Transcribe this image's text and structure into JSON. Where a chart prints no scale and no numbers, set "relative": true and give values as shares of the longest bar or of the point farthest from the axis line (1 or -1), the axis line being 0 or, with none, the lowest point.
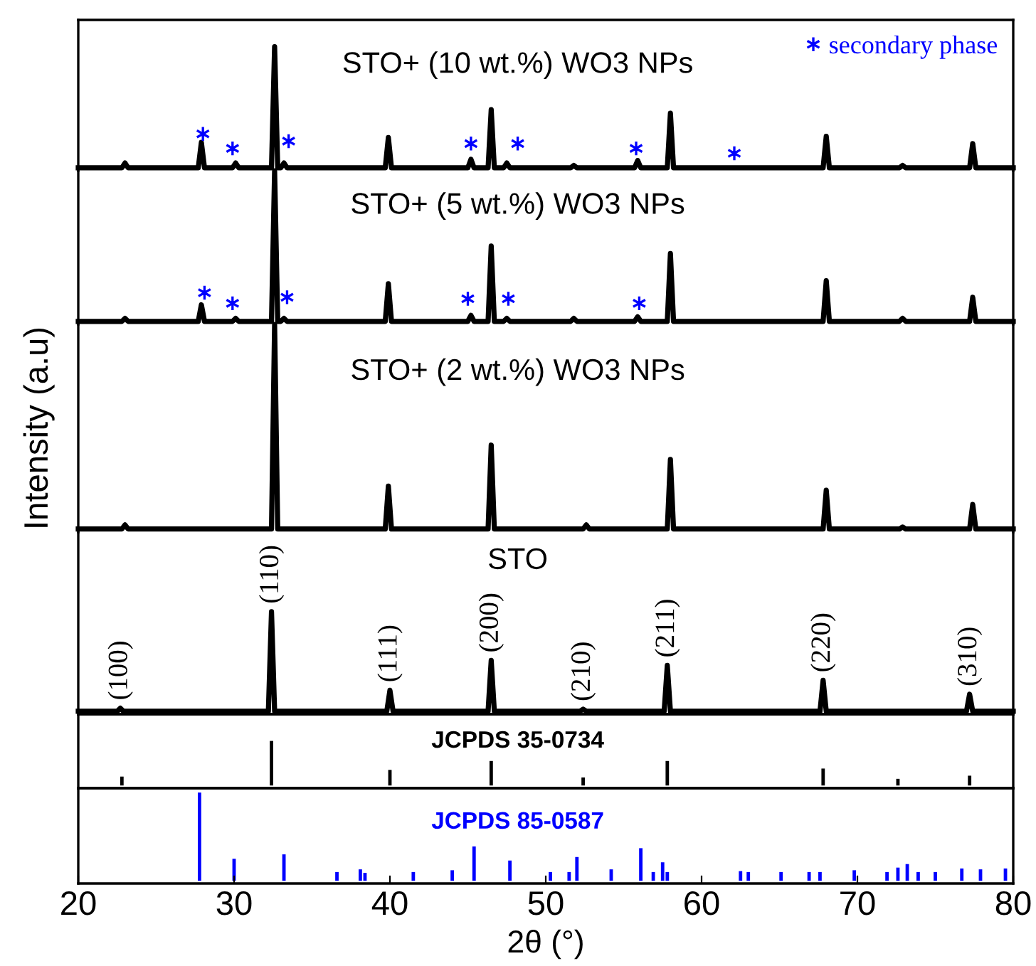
{
  "chart_data": [
    {
      "type": "line",
      "title": "STO+ (10 wt.%) WO3 NPs",
      "relative": true,
      "xlim": [
        20,
        80
      ],
      "tick_labels": false,
      "legend": "top right",
      "series": [
        {
          "color": "#000000",
          "x": [
            20,
            22.8,
            23.0,
            23.2,
            27.7,
            27.9,
            28.1,
            29.9,
            30.1,
            30.3,
            32.4,
            32.6,
            32.8,
            33.0,
            33.2,
            33.4,
            39.7,
            39.9,
            40.1,
            45.0,
            45.2,
            45.4,
            46.3,
            46.5,
            46.7,
            47.3,
            47.5,
            47.7,
            51.6,
            51.8,
            52.0,
            55.7,
            55.9,
            56.1,
            57.8,
            58.0,
            58.2,
            67.8,
            68.0,
            68.2,
            72.7,
            72.9,
            73.1,
            77.2,
            77.4,
            77.6,
            80
          ],
          "values": [
            0,
            0,
            0.04,
            0,
            0,
            0.21,
            0,
            0,
            0.04,
            0,
            0,
            1,
            0,
            0,
            0.04,
            0,
            0,
            0.25,
            0,
            0,
            0.07,
            0,
            0,
            0.48,
            0,
            0,
            0.04,
            0,
            0,
            0.02,
            0,
            0,
            0.06,
            0,
            0,
            0.45,
            0,
            0,
            0.26,
            0,
            0,
            0.02,
            0,
            0,
            0.2,
            0,
            0
          ]
        },
        {
          "type": "scatter",
          "name": "secondary phase",
          "marker": "cross",
          "color": "#0000ff",
          "x": [
            28.0,
            29.9,
            33.5,
            45.2,
            48.2,
            55.8,
            62.1
          ],
          "values": [
            0.28,
            0.16,
            0.22,
            0.2,
            0.2,
            0.16,
            0.12
          ]
        }
      ]
    },
    {
      "type": "line",
      "title": "STO+ (5 wt.%) WO3 NPs",
      "relative": true,
      "xlim": [
        20,
        80
      ],
      "tick_labels": false,
      "series": [
        {
          "color": "#000000",
          "x": [
            20,
            22.8,
            23.0,
            23.2,
            27.7,
            27.9,
            28.1,
            29.9,
            30.1,
            30.3,
            32.4,
            32.6,
            32.8,
            33.0,
            33.2,
            33.4,
            39.7,
            39.9,
            40.1,
            45.0,
            45.2,
            45.4,
            46.3,
            46.5,
            46.7,
            47.3,
            47.5,
            47.7,
            51.6,
            51.8,
            52.0,
            55.7,
            55.9,
            56.1,
            57.8,
            58.0,
            58.2,
            67.8,
            68.0,
            68.2,
            72.7,
            72.9,
            73.1,
            77.2,
            77.4,
            77.6,
            80
          ],
          "values": [
            0,
            0,
            0.02,
            0,
            0,
            0.11,
            0,
            0,
            0.02,
            0,
            0,
            1,
            0,
            0,
            0.02,
            0,
            0,
            0.25,
            0,
            0,
            0.04,
            0,
            0,
            0.5,
            0,
            0,
            0.02,
            0,
            0,
            0.02,
            0,
            0,
            0.03,
            0,
            0,
            0.45,
            0,
            0,
            0.27,
            0,
            0,
            0.02,
            0,
            0,
            0.16,
            0,
            0
          ]
        },
        {
          "type": "scatter",
          "marker": "cross",
          "color": "#0000ff",
          "x": [
            28.1,
            29.9,
            33.4,
            45.0,
            47.6,
            56.0
          ],
          "values": [
            0.19,
            0.12,
            0.16,
            0.15,
            0.15,
            0.12
          ]
        }
      ]
    },
    {
      "type": "line",
      "title": "STO+ (2 wt.%) WO3 NPs",
      "ylabel": "Intensity (a.u)",
      "relative": true,
      "xlim": [
        20,
        80
      ],
      "tick_labels": false,
      "series": [
        {
          "color": "#000000",
          "x": [
            20,
            22.8,
            23.0,
            23.2,
            32.4,
            32.6,
            32.8,
            39.7,
            39.9,
            40.1,
            46.3,
            46.5,
            46.7,
            52.4,
            52.6,
            52.8,
            57.8,
            58.0,
            58.2,
            67.8,
            68.0,
            68.2,
            72.7,
            72.9,
            73.1,
            77.2,
            77.4,
            77.6,
            80
          ],
          "values": [
            0,
            0,
            0.02,
            0,
            0,
            1,
            0,
            0,
            0.21,
            0,
            0,
            0.41,
            0,
            0,
            0.02,
            0,
            0,
            0.34,
            0,
            0,
            0.19,
            0,
            0,
            0.01,
            0,
            0,
            0.12,
            0,
            0
          ]
        }
      ]
    },
    {
      "type": "line",
      "title": "STO",
      "relative": true,
      "xlim": [
        20,
        80
      ],
      "tick_labels": false,
      "annotations": [
        {
          "text": "(100)",
          "x": 22.7,
          "y": 0.03
        },
        {
          "text": "(110)",
          "x": 32.4,
          "y": 1
        },
        {
          "text": "(111)",
          "x": 40.0,
          "y": 0.21
        },
        {
          "text": "(200)",
          "x": 46.5,
          "y": 0.51
        },
        {
          "text": "(210)",
          "x": 52.4,
          "y": 0.02
        },
        {
          "text": "(211)",
          "x": 57.8,
          "y": 0.46
        },
        {
          "text": "(220)",
          "x": 67.8,
          "y": 0.31
        },
        {
          "text": "(310)",
          "x": 77.2,
          "y": 0.17
        }
      ],
      "series": [
        {
          "color": "#000000",
          "x": [
            20,
            22.5,
            22.7,
            22.9,
            32.2,
            32.4,
            32.6,
            39.8,
            40.0,
            40.2,
            46.3,
            46.5,
            46.7,
            52.2,
            52.4,
            52.6,
            57.6,
            57.8,
            58.0,
            67.6,
            67.8,
            68.0,
            77.0,
            77.2,
            77.4,
            80
          ],
          "values": [
            0,
            0,
            0.03,
            0,
            0,
            1,
            0,
            0,
            0.21,
            0,
            0,
            0.51,
            0,
            0,
            0.02,
            0,
            0,
            0.46,
            0,
            0,
            0.31,
            0,
            0,
            0.17,
            0,
            0
          ]
        }
      ]
    },
    {
      "type": "bar",
      "title": "JCPDS 35-0734",
      "relative": true,
      "xlim": [
        20,
        80
      ],
      "tick_labels": false,
      "series": [
        {
          "color": "#000000",
          "x": [
            22.8,
            32.4,
            40.0,
            46.5,
            52.4,
            57.8,
            67.8,
            72.6,
            77.2
          ],
          "values": [
            0.2,
            1,
            0.35,
            0.55,
            0.18,
            0.55,
            0.38,
            0.15,
            0.22
          ]
        }
      ]
    },
    {
      "type": "bar",
      "title": "JCPDS 85-0587",
      "xlabel": "2θ (°)",
      "relative": true,
      "xlim": [
        20,
        80
      ],
      "xticks": [
        20,
        30,
        40,
        50,
        60,
        70,
        80
      ],
      "tick_labels": "x",
      "series": [
        {
          "color": "#0000ff",
          "x": [
            27.78,
            30.0,
            33.2,
            36.6,
            38.1,
            38.4,
            41.5,
            44.0,
            45.4,
            47.7,
            50.3,
            51.5,
            52.0,
            54.2,
            56.1,
            56.9,
            57.5,
            57.8,
            62.5,
            63.0,
            65.1,
            66.9,
            67.6,
            69.8,
            71.9,
            72.6,
            73.2,
            73.9,
            75.0,
            76.7,
            77.9,
            79.5
          ],
          "values": [
            1,
            0.25,
            0.3,
            0.1,
            0.13,
            0.09,
            0.1,
            0.12,
            0.39,
            0.23,
            0.1,
            0.1,
            0.27,
            0.13,
            0.37,
            0.1,
            0.21,
            0.1,
            0.11,
            0.1,
            0.1,
            0.1,
            0.1,
            0.12,
            0.1,
            0.15,
            0.19,
            0.1,
            0.1,
            0.14,
            0.13,
            0.14
          ]
        }
      ]
    }
  ]
}
